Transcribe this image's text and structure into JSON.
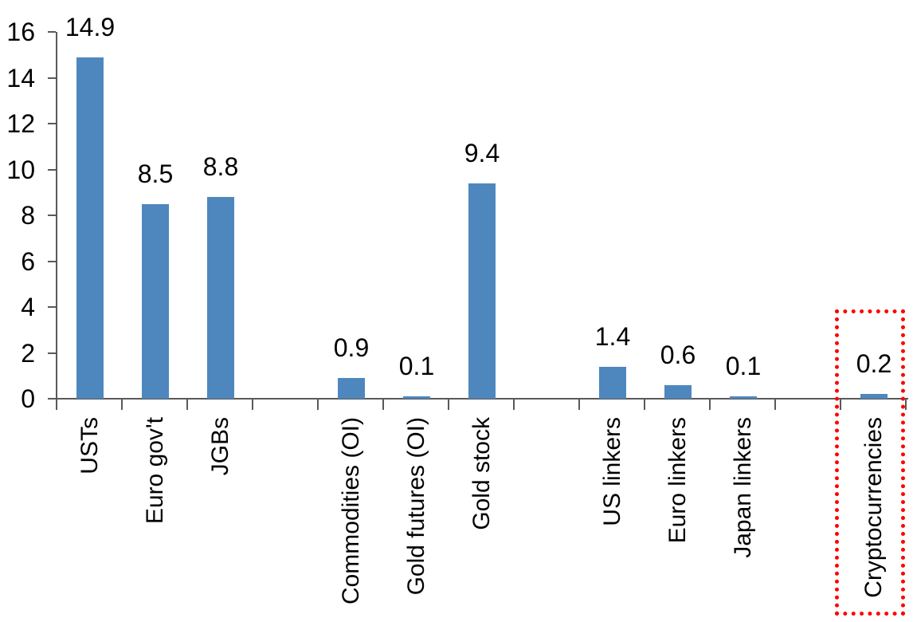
{
  "chart_data": {
    "type": "bar",
    "title": "",
    "xlabel": "",
    "ylabel": "",
    "categories": [
      "USTs",
      "Euro gov't",
      "JGBs",
      "",
      "Commodities (OI)",
      "Gold futures (OI)",
      "Gold stock",
      "",
      "US linkers",
      "Euro linkers",
      "Japan linkers",
      "",
      "Cryptocurrencies"
    ],
    "values": [
      14.9,
      8.5,
      8.8,
      null,
      0.9,
      0.1,
      9.4,
      null,
      1.4,
      0.6,
      0.1,
      null,
      0.2
    ],
    "data_labels": [
      "14.9",
      "8.5",
      "8.8",
      null,
      "0.9",
      "0.1",
      "9.4",
      null,
      "1.4",
      "0.6",
      "0.1",
      null,
      "0.2"
    ],
    "yticks": [
      "0",
      "2",
      "4",
      "6",
      "8",
      "10",
      "12",
      "14",
      "16"
    ],
    "ylim": [
      0,
      16
    ],
    "ytick_step": 2,
    "grid": false,
    "legend": false,
    "bar_color": "#4E87BE",
    "axis_color": "#595959",
    "label_color": "#000000",
    "annotation": {
      "type": "highlight-box",
      "target_category": "Cryptocurrencies",
      "border_color": "#FF0000",
      "border_style": "dotted"
    }
  }
}
